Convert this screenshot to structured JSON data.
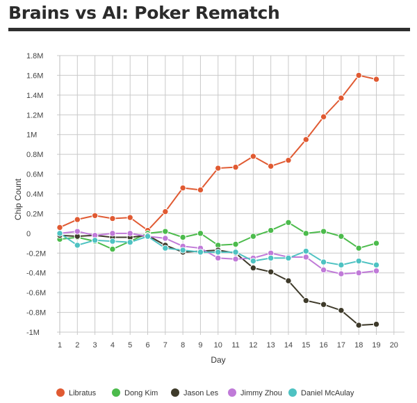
{
  "chart_data": {
    "type": "line",
    "title": "Brains vs AI: Poker Rematch",
    "xlabel": "Day",
    "ylabel": "Chip Count",
    "xlim": [
      0,
      20
    ],
    "ylim": [
      -1000000,
      1800000
    ],
    "x_ticks": [
      "1",
      "2",
      "3",
      "4",
      "5",
      "6",
      "7",
      "8",
      "9",
      "10",
      "11",
      "12",
      "13",
      "14",
      "15",
      "16",
      "17",
      "18",
      "19",
      "20"
    ],
    "y_ticks": [
      {
        "value": 1800000,
        "label": "1.8M"
      },
      {
        "value": 1600000,
        "label": "1.6M"
      },
      {
        "value": 1400000,
        "label": "1.4M"
      },
      {
        "value": 1200000,
        "label": "1.2M"
      },
      {
        "value": 1000000,
        "label": "1M"
      },
      {
        "value": 800000,
        "label": "0.8M"
      },
      {
        "value": 600000,
        "label": "0.6M"
      },
      {
        "value": 400000,
        "label": "0.4M"
      },
      {
        "value": 200000,
        "label": "0.2M"
      },
      {
        "value": 0,
        "label": "0"
      },
      {
        "value": -200000,
        "label": "-0.2M"
      },
      {
        "value": -400000,
        "label": "-0.4M"
      },
      {
        "value": -600000,
        "label": "-0.6M"
      },
      {
        "value": -800000,
        "label": "-0.8M"
      },
      {
        "value": -1000000,
        "label": "-1M"
      }
    ],
    "grid": true,
    "legend_position": "bottom",
    "x": [
      1,
      2,
      3,
      4,
      5,
      6,
      7,
      8,
      9,
      10,
      11,
      12,
      13,
      14,
      15,
      16,
      17,
      18,
      19
    ],
    "series": [
      {
        "name": "Libratus",
        "color": "#e05a32",
        "values": [
          60000,
          140000,
          180000,
          150000,
          160000,
          30000,
          220000,
          460000,
          440000,
          660000,
          670000,
          780000,
          680000,
          740000,
          950000,
          1180000,
          1370000,
          1600000,
          1560000
        ]
      },
      {
        "name": "Dong Kim",
        "color": "#4cbb4c",
        "values": [
          -60000,
          -40000,
          -80000,
          -160000,
          -80000,
          0,
          20000,
          -40000,
          0,
          -120000,
          -110000,
          -30000,
          30000,
          110000,
          0,
          20000,
          -30000,
          -150000,
          -100000
        ]
      },
      {
        "name": "Jason Les",
        "color": "#3e3a2a",
        "values": [
          -20000,
          -30000,
          -20000,
          -40000,
          -40000,
          -20000,
          -120000,
          -190000,
          -180000,
          -170000,
          -200000,
          -350000,
          -390000,
          -480000,
          -680000,
          -720000,
          -780000,
          -930000,
          -920000
        ]
      },
      {
        "name": "Jimmy Zhou",
        "color": "#c07ad8",
        "values": [
          0,
          20000,
          -20000,
          0,
          0,
          -30000,
          -50000,
          -130000,
          -150000,
          -250000,
          -260000,
          -250000,
          -200000,
          -240000,
          -240000,
          -370000,
          -410000,
          -400000,
          -380000
        ]
      },
      {
        "name": "Daniel McAulay",
        "color": "#4ec2c2",
        "values": [
          0,
          -120000,
          -70000,
          -80000,
          -90000,
          -30000,
          -150000,
          -170000,
          -190000,
          -190000,
          -190000,
          -280000,
          -250000,
          -250000,
          -180000,
          -290000,
          -320000,
          -280000,
          -320000
        ]
      }
    ]
  }
}
